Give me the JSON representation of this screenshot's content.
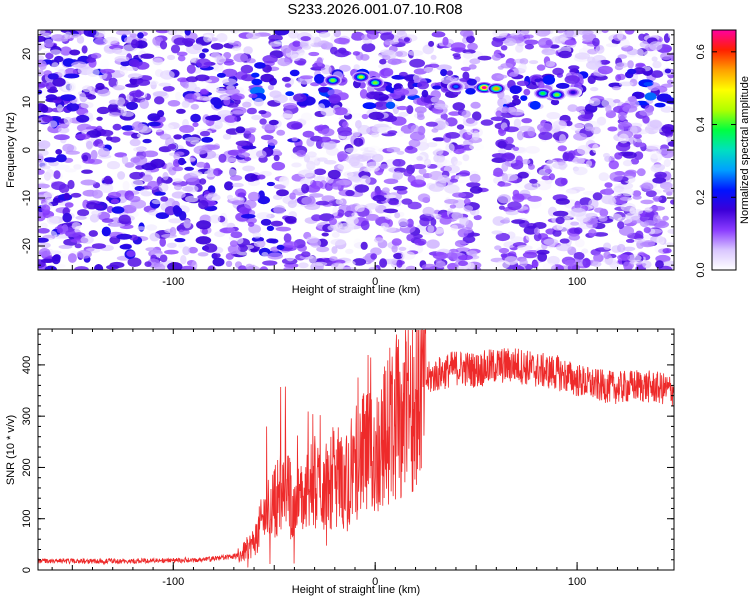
{
  "title": "S233.2026.001.07.10.R08",
  "chart_data": [
    {
      "type": "heatmap",
      "xlabel": "Height of straight line (km)",
      "ylabel": "Frequency (Hz)",
      "xlim": [
        -167,
        148
      ],
      "ylim": [
        -25,
        25
      ],
      "xticks": [
        -100,
        0,
        100
      ],
      "yticks": [
        -20,
        -10,
        0,
        10,
        20
      ],
      "colorbar": {
        "label": "Normalized spectral amplitude",
        "range": [
          0,
          0.66
        ],
        "ticks": [
          0.0,
          0.2,
          0.4,
          0.6
        ],
        "colors": [
          "#ffffff",
          "#d9c6ff",
          "#8a3cff",
          "#3b00d8",
          "#0014ff",
          "#00a0ff",
          "#00e0c0",
          "#00ff40",
          "#b0ff00",
          "#ffff00",
          "#ffa000",
          "#ff2000",
          "#ff00a0"
        ]
      },
      "signal_band": {
        "frequency_hz": 12.5,
        "peaks": [
          {
            "x": -21,
            "y": 14.5,
            "amplitude": 0.42
          },
          {
            "x": -7,
            "y": 15.2,
            "amplitude": 0.45
          },
          {
            "x": 0,
            "y": 14.0,
            "amplitude": 0.42
          },
          {
            "x": 40,
            "y": 13.2,
            "amplitude": 0.25
          },
          {
            "x": 54,
            "y": 13.0,
            "amplitude": 0.66
          },
          {
            "x": 60,
            "y": 12.8,
            "amplitude": 0.55
          },
          {
            "x": 83,
            "y": 11.8,
            "amplitude": 0.38
          },
          {
            "x": 90,
            "y": 11.5,
            "amplitude": 0.42
          },
          {
            "x": 98,
            "y": 12.0,
            "amplitude": 0.18
          }
        ]
      },
      "blank_band_x": [
        51,
        60
      ]
    },
    {
      "type": "line",
      "xlabel": "Height of straight line (km)",
      "ylabel": "SNR (10 * v/v)",
      "xlim": [
        -167,
        148
      ],
      "ylim": [
        0,
        470
      ],
      "xticks": [
        -100,
        0,
        100
      ],
      "yticks": [
        0,
        100,
        200,
        300,
        400
      ],
      "color": "#ee2a2a",
      "series": [
        {
          "x": [
            -167,
            -140,
            -110,
            -85,
            -67,
            -60,
            -55,
            -50,
            -45,
            -40,
            -35,
            -30,
            -25,
            -20,
            -15,
            -10,
            -5,
            0,
            5,
            10,
            15,
            20,
            25,
            30,
            40,
            50,
            60,
            70,
            80,
            90,
            100,
            110,
            120,
            130,
            140,
            148
          ],
          "y": [
            18,
            17,
            18,
            20,
            28,
            55,
            105,
            135,
            160,
            130,
            140,
            170,
            160,
            185,
            175,
            210,
            225,
            225,
            265,
            290,
            320,
            340,
            370,
            380,
            395,
            390,
            398,
            400,
            390,
            385,
            370,
            360,
            355,
            360,
            355,
            350
          ]
        }
      ]
    }
  ]
}
